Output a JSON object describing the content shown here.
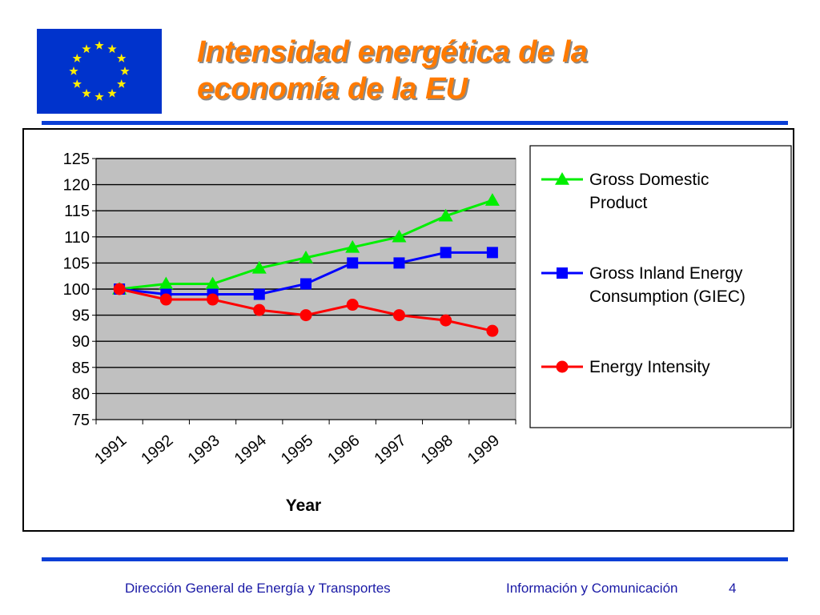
{
  "slide": {
    "title": "Intensidad energética de la economía de la EU",
    "title_line1": "Intensidad energética de la",
    "title_line2": "economía de la EU",
    "title_color": "#ff7a00",
    "accent_color": "#0a3fd6",
    "logo": "eu-flag-icon"
  },
  "footer": {
    "left": "Dirección General de Energía y Transportes",
    "right": "Información y Comunicación",
    "page": "4"
  },
  "chart_data": {
    "type": "line",
    "title": "",
    "xlabel": "Year",
    "ylabel": "",
    "categories": [
      "1991",
      "1992",
      "1993",
      "1994",
      "1995",
      "1996",
      "1997",
      "1998",
      "1999"
    ],
    "ylim": [
      75,
      125
    ],
    "yticks": [
      75,
      80,
      85,
      90,
      95,
      100,
      105,
      110,
      115,
      120,
      125
    ],
    "grid": true,
    "plot_background": "#c0c0c0",
    "legend_position": "right",
    "series": [
      {
        "name": "Gross Domestic Product",
        "color": "#00ee00",
        "marker": "triangle",
        "values": [
          100,
          101,
          101,
          104,
          106,
          108,
          110,
          114,
          117
        ]
      },
      {
        "name": "Gross Inland Energy Consumption (GIEC)",
        "color": "#0000ff",
        "marker": "square",
        "values": [
          100,
          99,
          99,
          99,
          101,
          105,
          105,
          107,
          107
        ]
      },
      {
        "name": "Energy Intensity",
        "color": "#ff0000",
        "marker": "circle",
        "values": [
          100,
          98,
          98,
          96,
          95,
          97,
          95,
          94,
          92
        ]
      }
    ],
    "legend_lines": [
      [
        "Gross Domestic",
        "Product"
      ],
      [
        "Gross Inland Energy",
        "Consumption (GIEC)"
      ],
      [
        "Energy Intensity"
      ]
    ]
  }
}
